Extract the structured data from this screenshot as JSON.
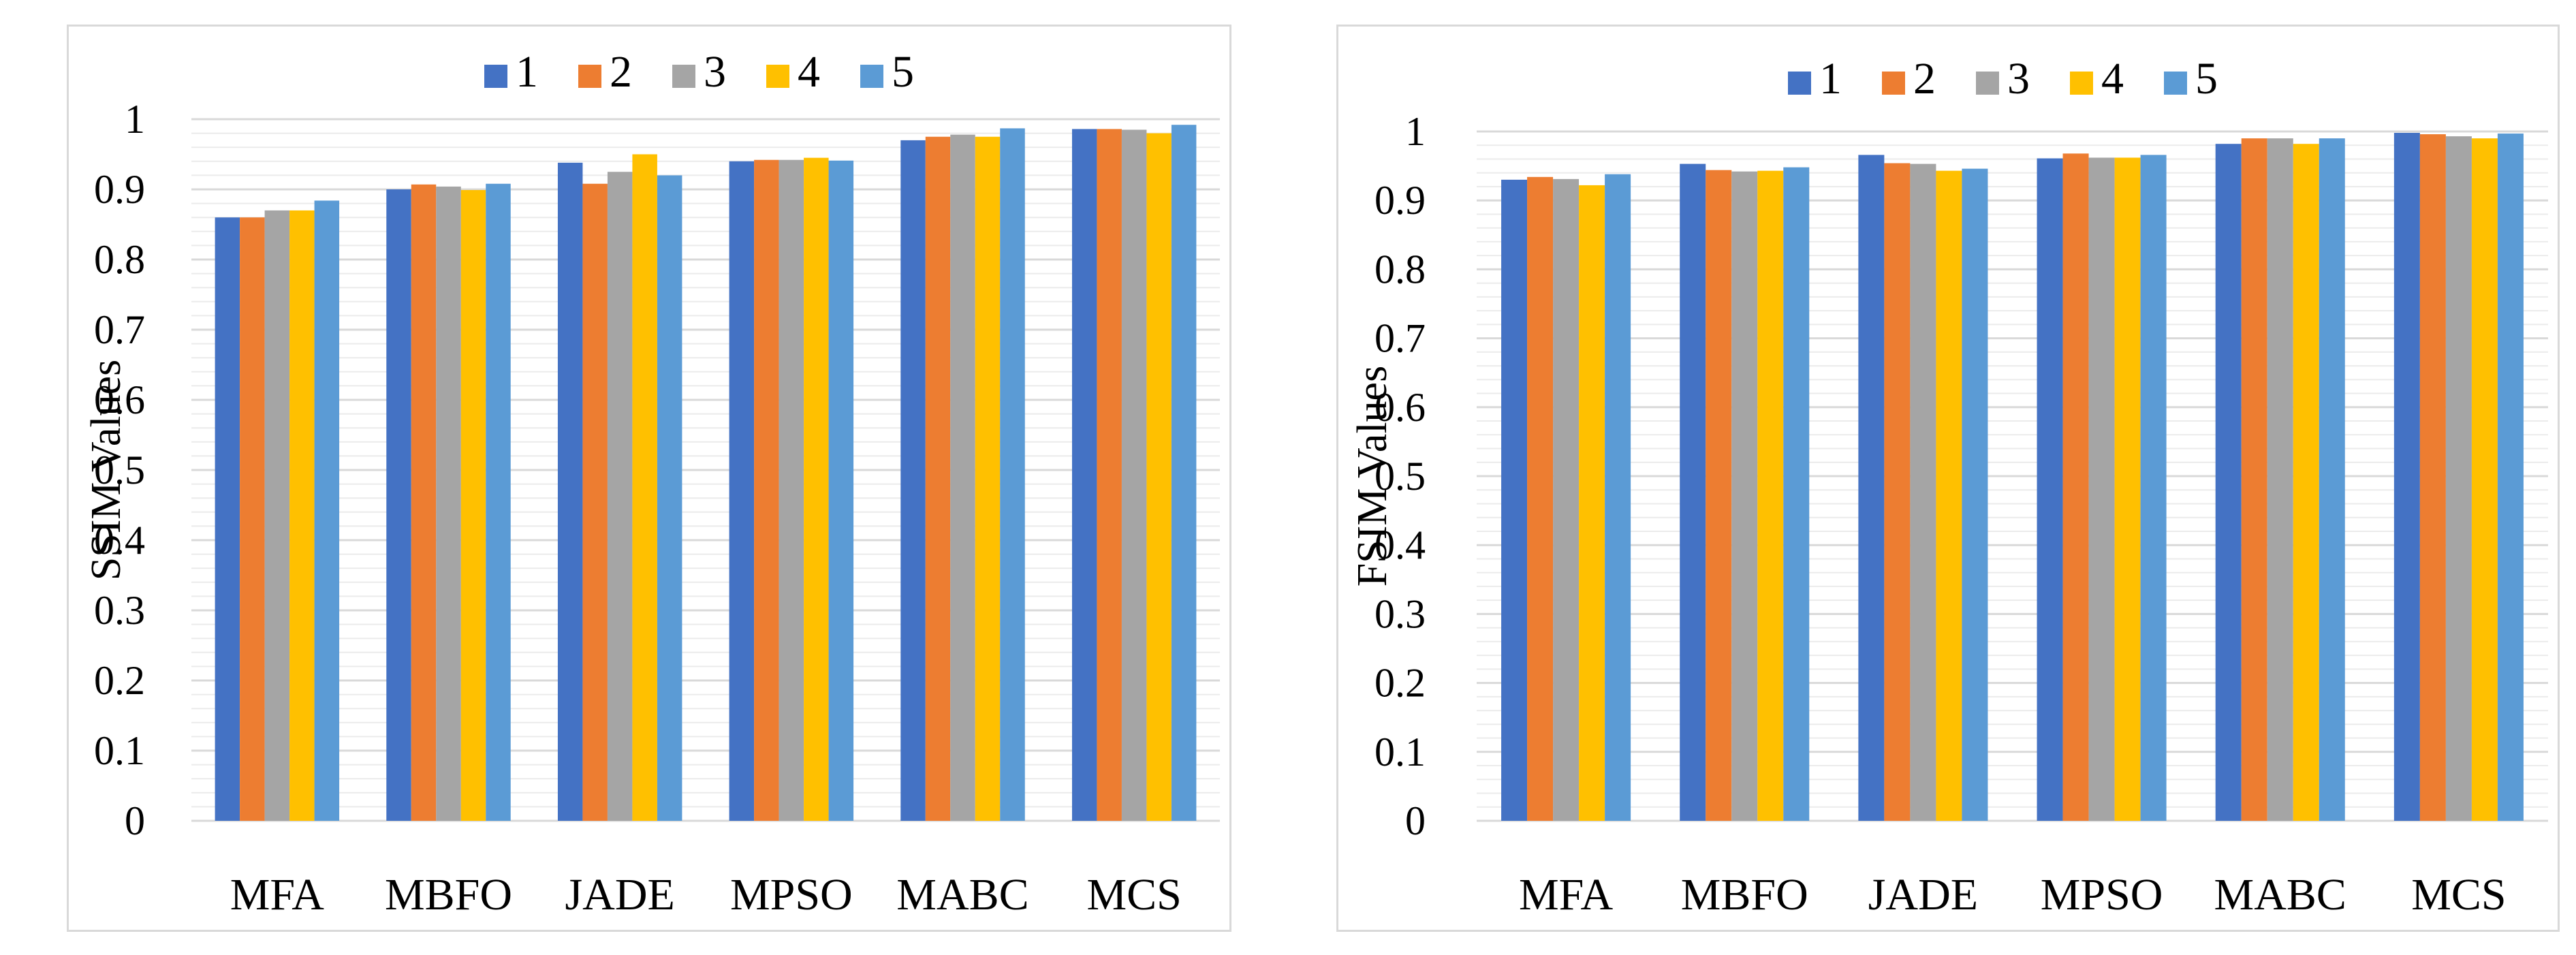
{
  "colors": {
    "series": [
      "#4472C4",
      "#ED7D31",
      "#A5A5A5",
      "#FFC000",
      "#5B9BD5"
    ],
    "major_grid": "#d9d9d9",
    "minor_grid": "#ebebeb",
    "panel_border": "#d9d9d9"
  },
  "chart_data": [
    {
      "type": "bar",
      "title": "",
      "xlabel": "",
      "ylabel": "SSIM Values",
      "ylim": [
        0,
        1
      ],
      "y_major_step": 0.1,
      "y_minor_step": 0.02,
      "y_tick_labels": [
        "0",
        "0.1",
        "0.2",
        "0.3",
        "0.4",
        "0.5",
        "0.6",
        "0.7",
        "0.8",
        "0.9",
        "1"
      ],
      "legend_position": "top-center",
      "categories": [
        "MFA",
        "MBFO",
        "JADE",
        "MPSO",
        "MABC",
        "MCS"
      ],
      "series": [
        {
          "name": "1",
          "values": [
            0.86,
            0.9,
            0.938,
            0.94,
            0.97,
            0.986
          ]
        },
        {
          "name": "2",
          "values": [
            0.86,
            0.907,
            0.908,
            0.942,
            0.975,
            0.986
          ]
        },
        {
          "name": "3",
          "values": [
            0.87,
            0.904,
            0.925,
            0.942,
            0.978,
            0.985
          ]
        },
        {
          "name": "4",
          "values": [
            0.87,
            0.899,
            0.95,
            0.945,
            0.975,
            0.98
          ]
        },
        {
          "name": "5",
          "values": [
            0.884,
            0.908,
            0.92,
            0.941,
            0.987,
            0.992
          ]
        }
      ]
    },
    {
      "type": "bar",
      "title": "",
      "xlabel": "",
      "ylabel": "FSIM Values",
      "ylim": [
        0,
        1
      ],
      "y_major_step": 0.1,
      "y_minor_step": 0.02,
      "y_tick_labels": [
        "0",
        "0.1",
        "0.2",
        "0.3",
        "0.4",
        "0.5",
        "0.6",
        "0.7",
        "0.8",
        "0.9",
        "1"
      ],
      "legend_position": "top-center",
      "categories": [
        "MFA",
        "MBFO",
        "JADE",
        "MPSO",
        "MABC",
        "MCS"
      ],
      "series": [
        {
          "name": "1",
          "values": [
            0.93,
            0.953,
            0.966,
            0.961,
            0.982,
            0.998
          ]
        },
        {
          "name": "2",
          "values": [
            0.934,
            0.944,
            0.954,
            0.968,
            0.99,
            0.996
          ]
        },
        {
          "name": "3",
          "values": [
            0.931,
            0.942,
            0.953,
            0.962,
            0.99,
            0.993
          ]
        },
        {
          "name": "4",
          "values": [
            0.922,
            0.943,
            0.943,
            0.962,
            0.982,
            0.99
          ]
        },
        {
          "name": "5",
          "values": [
            0.938,
            0.948,
            0.946,
            0.966,
            0.99,
            0.997
          ]
        }
      ]
    }
  ]
}
